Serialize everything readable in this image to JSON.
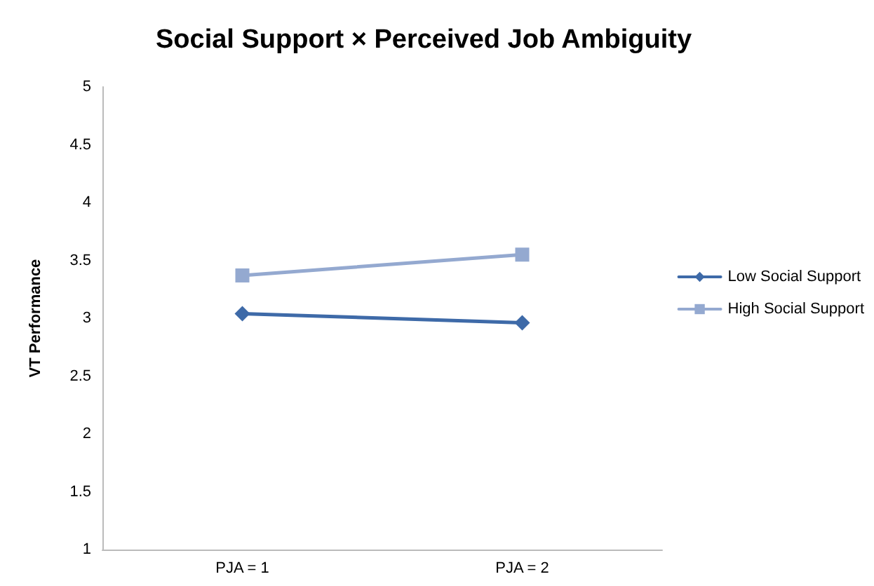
{
  "chart_data": {
    "type": "line",
    "title": "Social Support × Perceived Job Ambiguity",
    "ylabel": "VT Performance",
    "categories": [
      "PJA = 1",
      "PJA = 2"
    ],
    "series": [
      {
        "name": "Low Social Support",
        "color": "#3e6aa8",
        "values": [
          3.04,
          2.96
        ],
        "marker": "diamond"
      },
      {
        "name": "High Social Support",
        "color": "#94a9d0",
        "values": [
          3.37,
          3.55
        ],
        "marker": "square"
      }
    ],
    "ylim": [
      1,
      5
    ],
    "yticks": [
      1,
      1.5,
      2,
      2.5,
      3,
      3.5,
      4,
      4.5,
      5
    ],
    "grid": false,
    "legend": "right"
  }
}
